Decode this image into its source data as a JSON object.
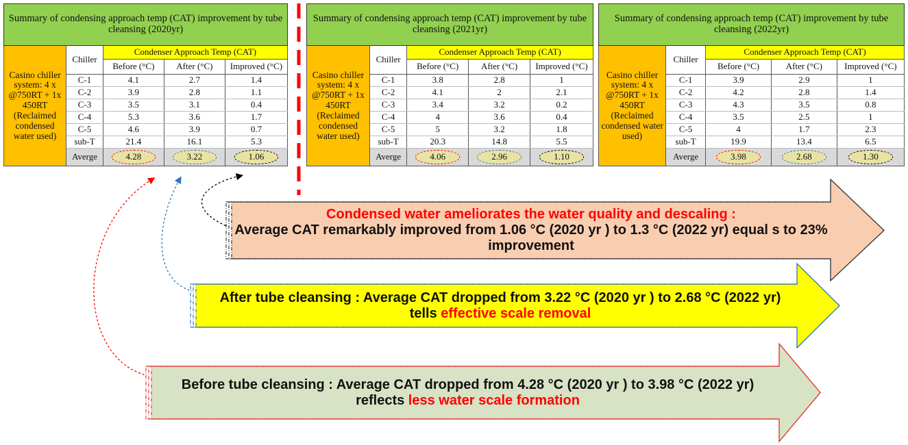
{
  "tables": [
    {
      "title": "Summary of condensing approach temp (CAT) improvement by tube cleansing (2020yr)",
      "system": "Casino chiller system: 4 x @750RT + 1x 450RT (Reclaimed condensed water used)",
      "chiller_header": "Chiller",
      "group_header": "Condenser Approach Temp (CAT)",
      "columns": [
        "Before (°C)",
        "After (°C)",
        "Improved (°C)"
      ],
      "rows": [
        [
          "C-1",
          "4.1",
          "2.7",
          "1.4"
        ],
        [
          "C-2",
          "3.9",
          "2.8",
          "1.1"
        ],
        [
          "C-3",
          "3.5",
          "3.1",
          "0.4"
        ],
        [
          "C-4",
          "5.3",
          "3.6",
          "1.7"
        ],
        [
          "C-5",
          "4.6",
          "3.9",
          "0.7"
        ],
        [
          "sub-T",
          "21.4",
          "16.1",
          "5.3"
        ]
      ],
      "average": [
        "Averge",
        "4.28",
        "3.22",
        "1.06"
      ]
    },
    {
      "title": "Summary of condensing approach temp (CAT) improvement by tube cleansing (2021yr)",
      "system": "Casino chiller system: 4 x @750RT + 1x 450RT (Reclaimed condensed water used)",
      "chiller_header": "Chiller",
      "group_header": "Condenser Approach Temp (CAT)",
      "columns": [
        "Before (°C)",
        "After (°C)",
        "Improved (°C)"
      ],
      "rows": [
        [
          "C-1",
          "3.8",
          "2.8",
          "1"
        ],
        [
          "C-2",
          "4.1",
          "2",
          "2.1"
        ],
        [
          "C-3",
          "3.4",
          "3.2",
          "0.2"
        ],
        [
          "C-4",
          "4",
          "3.6",
          "0.4"
        ],
        [
          "C-5",
          "5",
          "3.2",
          "1.8"
        ],
        [
          "sub-T",
          "20.3",
          "14.8",
          "5.5"
        ]
      ],
      "average": [
        "Averge",
        "4.06",
        "2.96",
        "1.10"
      ]
    },
    {
      "title": "Summary of condensing approach temp (CAT) improvement by tube cleansing (2022yr)",
      "system": "Casino chiller system: 4 x @750RT + 1x 450RT (Reclaimed condensed water used)",
      "chiller_header": "Chiller",
      "group_header": "Condenser Approach Temp (CAT)",
      "columns": [
        "Before (°C)",
        "After (°C)",
        "Improved (°C)"
      ],
      "rows": [
        [
          "C-1",
          "3.9",
          "2.9",
          "1"
        ],
        [
          "C-2",
          "4.2",
          "2.8",
          "1.4"
        ],
        [
          "C-3",
          "4.3",
          "3.5",
          "0.8"
        ],
        [
          "C-4",
          "3.5",
          "2.5",
          "1"
        ],
        [
          "C-5",
          "4",
          "1.7",
          "2.3"
        ],
        [
          "sub-T",
          "19.9",
          "13.4",
          "6.5"
        ]
      ],
      "average": [
        "Averge",
        "3.98",
        "2.68",
        "1.30"
      ]
    }
  ],
  "arrows": [
    {
      "heading": "Condensed water ameliorates the water quality and descaling :",
      "text": "Average CAT remarkably improved from 1.06 °C (2020 yr ) to 1.3 °C (2022 yr) equal s to 23% improvement"
    },
    {
      "text": "After tube cleansing : Average CAT dropped from 3.22 °C (2020 yr ) to 2.68 °C (2022 yr) tells ",
      "highlight": "effective scale removal"
    },
    {
      "text": "Before tube cleansing : Average CAT dropped from 4.28 °C (2020 yr ) to 3.98 °C (2022 yr) reflects ",
      "highlight": "less water scale formation"
    }
  ]
}
